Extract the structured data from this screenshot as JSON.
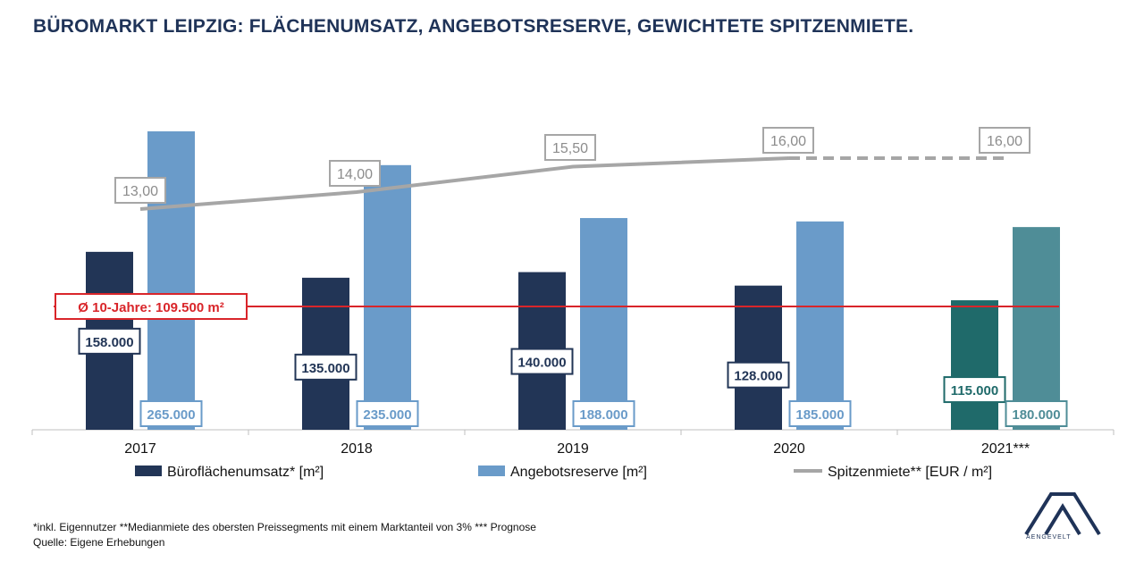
{
  "title": "BÜROMARKT LEIPZIG: FLÄCHENUMSATZ, ANGEBOTSRESERVE, GEWICHTETE SPITZENMIETE.",
  "colors": {
    "umsatz": "#223556",
    "reserve": "#6a9bc9",
    "umsatz_forecast": "#1f6a6a",
    "reserve_forecast": "#4f8d97",
    "rent": "#a6a6a6",
    "average": "#d9252a"
  },
  "chart_data": {
    "type": "bar",
    "categories": [
      "2017",
      "2018",
      "2019",
      "2020",
      "2021***"
    ],
    "forecast_category": "2021***",
    "series": [
      {
        "name": "Büroflächenumsatz* [m²]",
        "values": [
          158000,
          135000,
          140000,
          128000,
          115000
        ],
        "labels": [
          "158.000",
          "135.000",
          "140.000",
          "128.000",
          "115.000"
        ]
      },
      {
        "name": "Angebotsreserve [m²]",
        "values": [
          265000,
          235000,
          188000,
          185000,
          180000
        ],
        "labels": [
          "265.000",
          "235.000",
          "188.000",
          "185.000",
          "180.000"
        ]
      },
      {
        "name": "Spitzenmiete** [EUR / m²]",
        "type": "line",
        "axis": "secondary",
        "values": [
          13.0,
          14.0,
          15.5,
          16.0,
          16.0
        ],
        "labels": [
          "13,00",
          "14,00",
          "15,50",
          "16,00",
          "16,00"
        ],
        "dashed_from": "2020"
      }
    ],
    "reference_line": {
      "value": 109500,
      "label": "Ø 10-Jahre: 109.500 m²"
    },
    "legend_position": "bottom",
    "grid": false
  },
  "footnotes": {
    "line1": "*inkl. Eigennutzer **Medianmiete des obersten Preissegments mit einem Marktanteil von 3% *** Prognose",
    "line2": "Quelle: Eigene Erhebungen"
  },
  "logo": {
    "name": "aengevelt-logo",
    "text": "AENGEVELT"
  }
}
